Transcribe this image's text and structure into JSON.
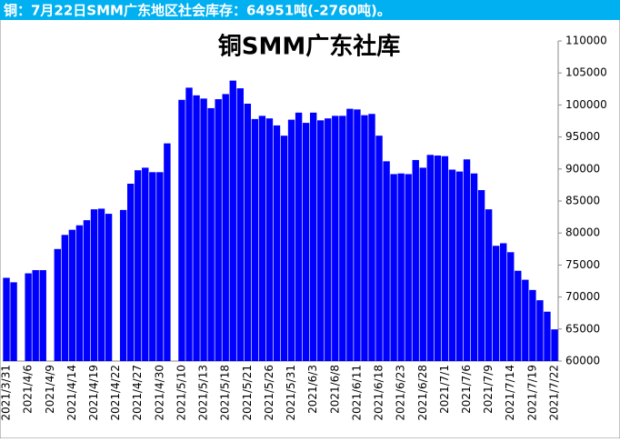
{
  "header": "铜：7月22日SMM广东地区社会库存：64951吨(-2760吨)。",
  "chart_data": {
    "type": "bar",
    "title": "铜SMM广东社库",
    "color": "#0000ff",
    "categories": [
      "2021/3/31",
      null,
      null,
      "2021/4/6",
      null,
      null,
      "2021/4/9",
      null,
      null,
      "2021/4/14",
      null,
      null,
      "2021/4/19",
      null,
      null,
      "2021/4/22",
      null,
      null,
      "2021/4/27",
      null,
      null,
      "2021/4/30",
      null,
      null,
      "2021/5/10",
      null,
      null,
      "2021/5/13",
      null,
      null,
      "2021/5/18",
      null,
      null,
      "2021/5/21",
      null,
      null,
      "2021/5/26",
      null,
      null,
      "2021/5/31",
      null,
      null,
      "2021/6/3",
      null,
      null,
      "2021/6/8",
      null,
      null,
      "2021/6/11",
      null,
      null,
      "2021/6/18",
      null,
      null,
      "2021/6/23",
      null,
      null,
      "2021/6/28",
      null,
      null,
      "2021/7/1",
      null,
      null,
      "2021/7/6",
      null,
      null,
      "2021/7/9",
      null,
      null,
      "2021/7/14",
      null,
      null,
      "2021/7/19",
      null,
      null,
      "2021/7/22"
    ],
    "values": [
      73000,
      72300,
      null,
      73700,
      74200,
      74200,
      null,
      77500,
      79700,
      80500,
      81200,
      82000,
      83700,
      83800,
      83000,
      null,
      83600,
      87700,
      89800,
      90200,
      89500,
      89500,
      94000,
      null,
      100800,
      102700,
      101500,
      101000,
      99500,
      100900,
      101700,
      103800,
      102600,
      100200,
      97800,
      98300,
      97900,
      96800,
      95200,
      97700,
      98800,
      97200,
      98800,
      97600,
      97900,
      98300,
      98300,
      99400,
      99300,
      98400,
      98600,
      95200,
      91200,
      89200,
      89300,
      89200,
      91400,
      90200,
      92200,
      92100,
      92000,
      89900,
      89600,
      91500,
      89300,
      86700,
      83700,
      78000,
      78400,
      77000,
      74100,
      72700,
      71100,
      69500,
      67711,
      64951
    ],
    "ylim": [
      60000,
      110000
    ],
    "yticks": [
      60000,
      65000,
      70000,
      75000,
      80000,
      85000,
      90000,
      95000,
      100000,
      105000,
      110000
    ]
  }
}
